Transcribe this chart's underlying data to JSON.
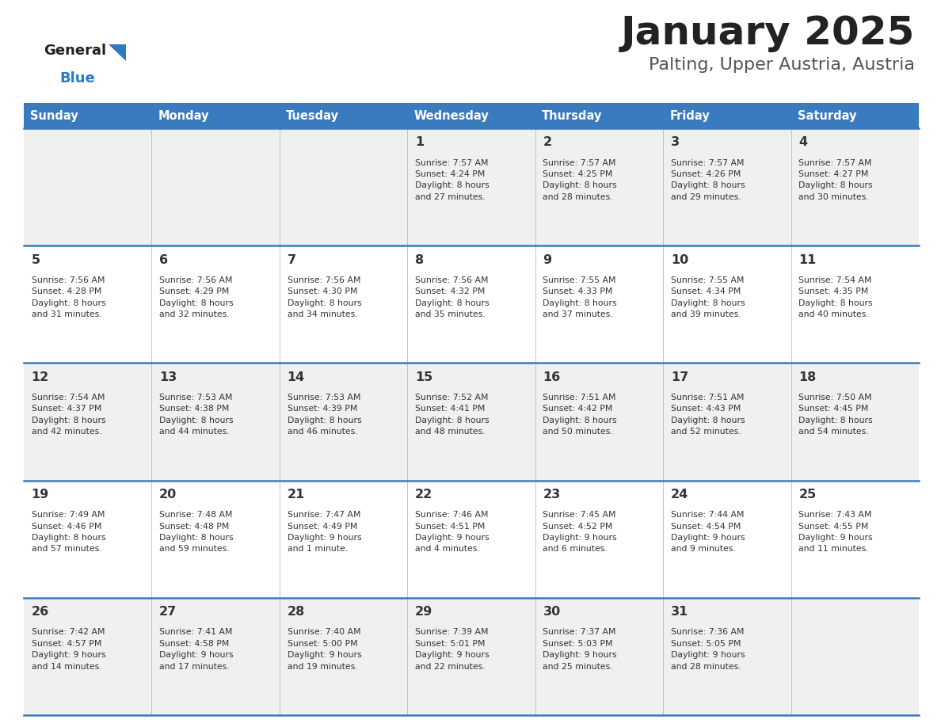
{
  "title": "January 2025",
  "subtitle": "Palting, Upper Austria, Austria",
  "days_of_week": [
    "Sunday",
    "Monday",
    "Tuesday",
    "Wednesday",
    "Thursday",
    "Friday",
    "Saturday"
  ],
  "header_bg": "#3a7abf",
  "header_text": "#ffffff",
  "cell_bg_odd": "#f0f0f0",
  "cell_bg_even": "#ffffff",
  "cell_text": "#333333",
  "border_color": "#3a7abf",
  "title_color": "#222222",
  "subtitle_color": "#555555",
  "logo_general_color": "#222222",
  "logo_blue_color": "#2e7abf",
  "weeks": [
    [
      {
        "day": null,
        "info": null
      },
      {
        "day": null,
        "info": null
      },
      {
        "day": null,
        "info": null
      },
      {
        "day": 1,
        "info": "Sunrise: 7:57 AM\nSunset: 4:24 PM\nDaylight: 8 hours\nand 27 minutes."
      },
      {
        "day": 2,
        "info": "Sunrise: 7:57 AM\nSunset: 4:25 PM\nDaylight: 8 hours\nand 28 minutes."
      },
      {
        "day": 3,
        "info": "Sunrise: 7:57 AM\nSunset: 4:26 PM\nDaylight: 8 hours\nand 29 minutes."
      },
      {
        "day": 4,
        "info": "Sunrise: 7:57 AM\nSunset: 4:27 PM\nDaylight: 8 hours\nand 30 minutes."
      }
    ],
    [
      {
        "day": 5,
        "info": "Sunrise: 7:56 AM\nSunset: 4:28 PM\nDaylight: 8 hours\nand 31 minutes."
      },
      {
        "day": 6,
        "info": "Sunrise: 7:56 AM\nSunset: 4:29 PM\nDaylight: 8 hours\nand 32 minutes."
      },
      {
        "day": 7,
        "info": "Sunrise: 7:56 AM\nSunset: 4:30 PM\nDaylight: 8 hours\nand 34 minutes."
      },
      {
        "day": 8,
        "info": "Sunrise: 7:56 AM\nSunset: 4:32 PM\nDaylight: 8 hours\nand 35 minutes."
      },
      {
        "day": 9,
        "info": "Sunrise: 7:55 AM\nSunset: 4:33 PM\nDaylight: 8 hours\nand 37 minutes."
      },
      {
        "day": 10,
        "info": "Sunrise: 7:55 AM\nSunset: 4:34 PM\nDaylight: 8 hours\nand 39 minutes."
      },
      {
        "day": 11,
        "info": "Sunrise: 7:54 AM\nSunset: 4:35 PM\nDaylight: 8 hours\nand 40 minutes."
      }
    ],
    [
      {
        "day": 12,
        "info": "Sunrise: 7:54 AM\nSunset: 4:37 PM\nDaylight: 8 hours\nand 42 minutes."
      },
      {
        "day": 13,
        "info": "Sunrise: 7:53 AM\nSunset: 4:38 PM\nDaylight: 8 hours\nand 44 minutes."
      },
      {
        "day": 14,
        "info": "Sunrise: 7:53 AM\nSunset: 4:39 PM\nDaylight: 8 hours\nand 46 minutes."
      },
      {
        "day": 15,
        "info": "Sunrise: 7:52 AM\nSunset: 4:41 PM\nDaylight: 8 hours\nand 48 minutes."
      },
      {
        "day": 16,
        "info": "Sunrise: 7:51 AM\nSunset: 4:42 PM\nDaylight: 8 hours\nand 50 minutes."
      },
      {
        "day": 17,
        "info": "Sunrise: 7:51 AM\nSunset: 4:43 PM\nDaylight: 8 hours\nand 52 minutes."
      },
      {
        "day": 18,
        "info": "Sunrise: 7:50 AM\nSunset: 4:45 PM\nDaylight: 8 hours\nand 54 minutes."
      }
    ],
    [
      {
        "day": 19,
        "info": "Sunrise: 7:49 AM\nSunset: 4:46 PM\nDaylight: 8 hours\nand 57 minutes."
      },
      {
        "day": 20,
        "info": "Sunrise: 7:48 AM\nSunset: 4:48 PM\nDaylight: 8 hours\nand 59 minutes."
      },
      {
        "day": 21,
        "info": "Sunrise: 7:47 AM\nSunset: 4:49 PM\nDaylight: 9 hours\nand 1 minute."
      },
      {
        "day": 22,
        "info": "Sunrise: 7:46 AM\nSunset: 4:51 PM\nDaylight: 9 hours\nand 4 minutes."
      },
      {
        "day": 23,
        "info": "Sunrise: 7:45 AM\nSunset: 4:52 PM\nDaylight: 9 hours\nand 6 minutes."
      },
      {
        "day": 24,
        "info": "Sunrise: 7:44 AM\nSunset: 4:54 PM\nDaylight: 9 hours\nand 9 minutes."
      },
      {
        "day": 25,
        "info": "Sunrise: 7:43 AM\nSunset: 4:55 PM\nDaylight: 9 hours\nand 11 minutes."
      }
    ],
    [
      {
        "day": 26,
        "info": "Sunrise: 7:42 AM\nSunset: 4:57 PM\nDaylight: 9 hours\nand 14 minutes."
      },
      {
        "day": 27,
        "info": "Sunrise: 7:41 AM\nSunset: 4:58 PM\nDaylight: 9 hours\nand 17 minutes."
      },
      {
        "day": 28,
        "info": "Sunrise: 7:40 AM\nSunset: 5:00 PM\nDaylight: 9 hours\nand 19 minutes."
      },
      {
        "day": 29,
        "info": "Sunrise: 7:39 AM\nSunset: 5:01 PM\nDaylight: 9 hours\nand 22 minutes."
      },
      {
        "day": 30,
        "info": "Sunrise: 7:37 AM\nSunset: 5:03 PM\nDaylight: 9 hours\nand 25 minutes."
      },
      {
        "day": 31,
        "info": "Sunrise: 7:36 AM\nSunset: 5:05 PM\nDaylight: 9 hours\nand 28 minutes."
      },
      {
        "day": null,
        "info": null
      }
    ]
  ]
}
